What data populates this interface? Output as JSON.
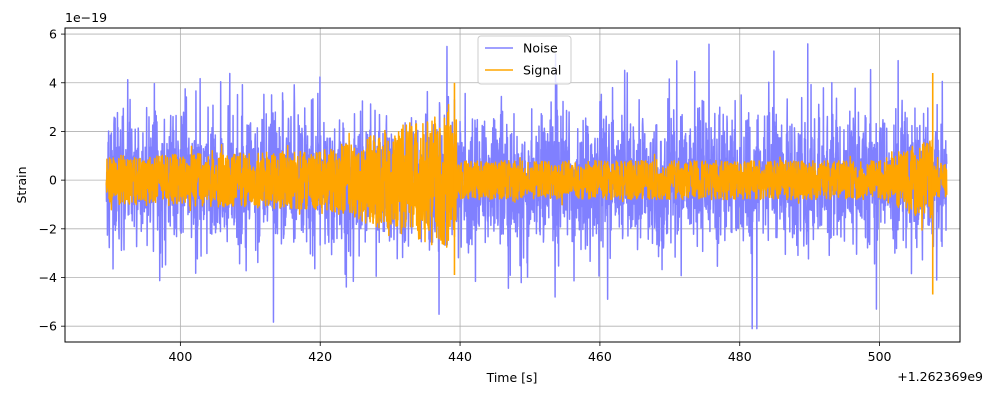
{
  "chart_data": {
    "type": "line",
    "title": "",
    "xlabel": "Time [s]",
    "ylabel": "Strain",
    "x_offset_label": "+1.262369e9",
    "y_scale_label": "1e−19",
    "xlim": [
      383.5,
      511.5
    ],
    "ylim": [
      -6.65,
      6.25
    ],
    "x_ticks": [
      400,
      420,
      440,
      460,
      480,
      500
    ],
    "x_tick_labels": [
      "400",
      "420",
      "440",
      "460",
      "480",
      "500"
    ],
    "y_ticks": [
      -6,
      -4,
      -2,
      0,
      2,
      4,
      6
    ],
    "y_tick_labels": [
      "−6",
      "−4",
      "−2",
      "0",
      "2",
      "4",
      "6"
    ],
    "grid": true,
    "legend_position": "top-center",
    "series": [
      {
        "name": "Noise",
        "color": "#8080ff",
        "x_start": 389.4,
        "x_end": 509.6,
        "typical_amplitude": 2.5,
        "peak_max": 5.6,
        "peak_min": -6.1
      },
      {
        "name": "Signal",
        "color": "#ffa500",
        "x_start": 389.4,
        "x_end": 509.6,
        "segments": [
          {
            "x_start": 389.4,
            "x_end": 420,
            "amplitude_start": 1.0,
            "amplitude_end": 1.2
          },
          {
            "x_start": 420,
            "x_end": 439.5,
            "amplitude_start": 1.2,
            "amplitude_end": 3.0
          },
          {
            "x_start": 439.5,
            "x_end": 500,
            "amplitude_start": 0.8,
            "amplitude_end": 0.8
          },
          {
            "x_start": 500,
            "x_end": 507.6,
            "amplitude_start": 0.8,
            "amplitude_end": 1.8
          },
          {
            "x_start": 507.6,
            "x_end": 509.6,
            "amplitude_start": 0.7,
            "amplitude_end": 0.7
          }
        ],
        "spikes": [
          {
            "x": 439.2,
            "ymax": 4.0,
            "ymin": -3.9
          },
          {
            "x": 507.6,
            "ymax": 4.4,
            "ymin": -4.7
          }
        ]
      }
    ]
  }
}
